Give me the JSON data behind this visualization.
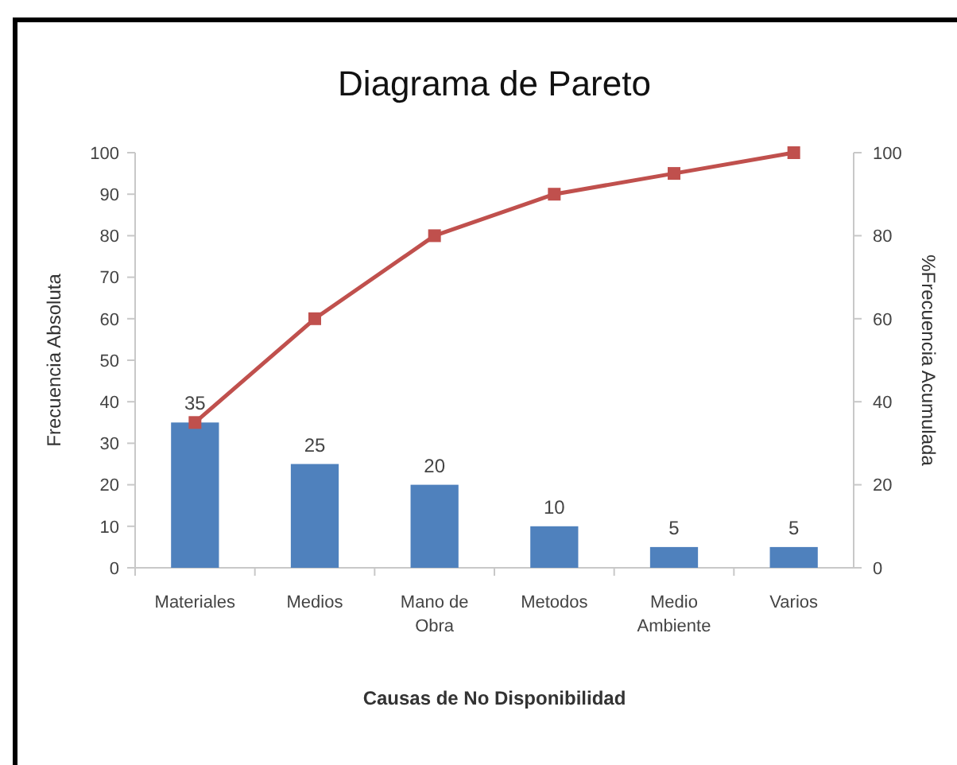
{
  "chart_data": {
    "type": "bar",
    "title": "Diagrama de Pareto",
    "xlabel": "Causas de No Disponibilidad",
    "ylabel": "Frecuencia Absoluta",
    "y2label": "%Frecuencia Acumulada",
    "categories": [
      "Materiales",
      "Medios",
      "Mano de Obra",
      "Metodos",
      "Medio Ambiente",
      "Varios"
    ],
    "series": [
      {
        "color": "#4f81bd",
        "values": [
          35,
          25,
          20,
          10,
          5,
          5
        ],
        "value_labels": [
          "35",
          "25",
          "20",
          "10",
          "5",
          "5"
        ]
      },
      {
        "type": "line",
        "axis": "y2",
        "color": "#c0504d",
        "values": [
          35,
          60,
          80,
          90,
          95,
          100
        ],
        "marker": "square",
        "line_style": "solid"
      }
    ],
    "ylim": [
      0,
      100
    ],
    "yticks": [
      0,
      10,
      20,
      30,
      40,
      50,
      60,
      70,
      80,
      90,
      100
    ],
    "y2lim": [
      0,
      100
    ],
    "y2ticks": [
      0,
      20,
      40,
      60,
      80,
      100
    ],
    "grid": false
  }
}
